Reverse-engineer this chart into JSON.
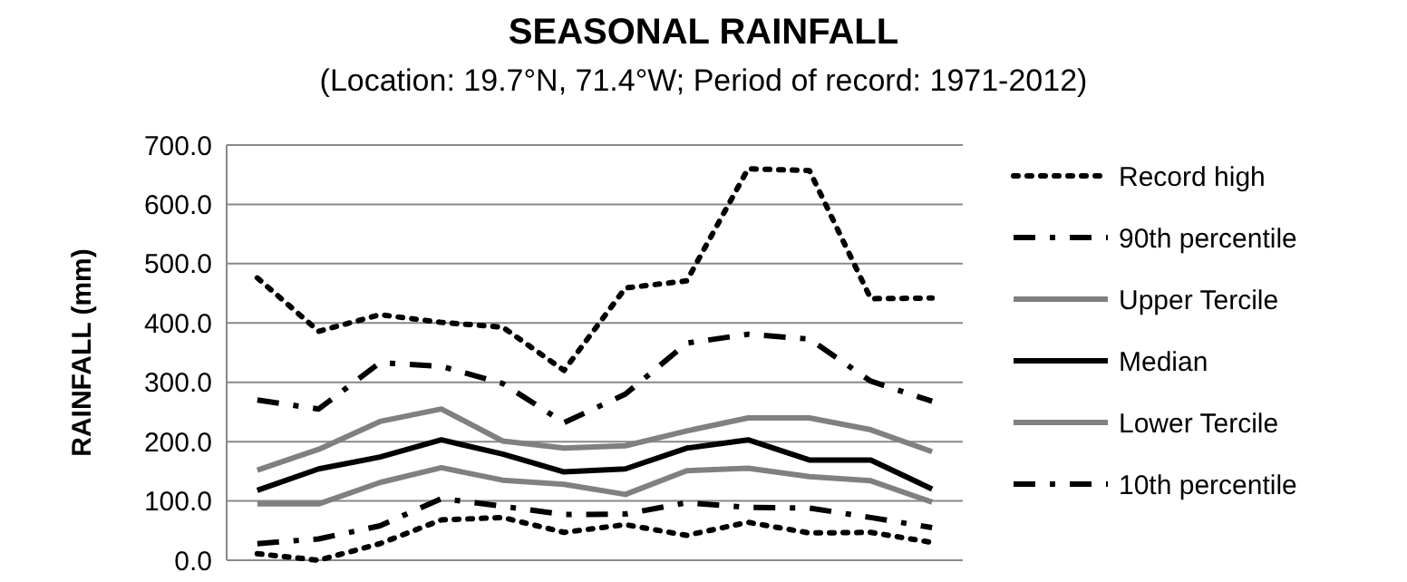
{
  "chart_data": {
    "type": "line",
    "title": "SEASONAL RAINFALL",
    "subtitle": "(Location: 19.7°N, 71.4°W; Period of record: 1971-2012)",
    "ylabel": "RAINFALL (mm)",
    "categories": [
      null,
      null,
      null,
      null,
      null,
      null,
      null,
      null,
      null,
      null,
      null,
      null
    ],
    "ylim": [
      0,
      700
    ],
    "yticks": [
      {
        "value": 0,
        "label": "0.0"
      },
      {
        "value": 100,
        "label": "100.0"
      },
      {
        "value": 200,
        "label": "200.0"
      },
      {
        "value": 300,
        "label": "300.0"
      },
      {
        "value": 400,
        "label": "400.0"
      },
      {
        "value": 500,
        "label": "500.0"
      },
      {
        "value": 600,
        "label": "600.0"
      },
      {
        "value": 700,
        "label": "700.0"
      }
    ],
    "grid": "y",
    "legend": "right",
    "tick_labels": "y",
    "series": [
      {
        "name": "Record high",
        "color": "#000000",
        "line_style": "dotted",
        "values": [
          476,
          386,
          414,
          401,
          393,
          320,
          459,
          471,
          660,
          657,
          441,
          442
        ]
      },
      {
        "name": "90th percentile",
        "color": "#000000",
        "line_style": "dashed",
        "values": [
          270,
          255,
          333,
          327,
          298,
          232,
          280,
          366,
          381,
          373,
          302,
          268
        ]
      },
      {
        "name": "Upper Tercile",
        "color": "#808080",
        "line_style": "solid",
        "values": [
          152,
          187,
          234,
          255,
          201,
          189,
          193,
          218,
          240,
          240,
          220,
          183
        ]
      },
      {
        "name": "Median",
        "color": "#000000",
        "line_style": "solid",
        "values": [
          118,
          154,
          174,
          203,
          179,
          149,
          154,
          189,
          203,
          169,
          169,
          120
        ]
      },
      {
        "name": "Lower Tercile",
        "color": "#808080",
        "line_style": "solid",
        "values": [
          95,
          95,
          131,
          156,
          135,
          128,
          111,
          151,
          155,
          141,
          134,
          98
        ]
      },
      {
        "name": "10th percentile",
        "color": "#000000",
        "line_style": "dashed",
        "values": [
          28,
          36,
          58,
          104,
          91,
          77,
          78,
          97,
          89,
          88,
          72,
          55
        ]
      },
      {
        "color": "#000000",
        "line_style": "dotted",
        "values": [
          11,
          0,
          28,
          68,
          72,
          47,
          60,
          42,
          64,
          46,
          47,
          30
        ]
      }
    ]
  }
}
